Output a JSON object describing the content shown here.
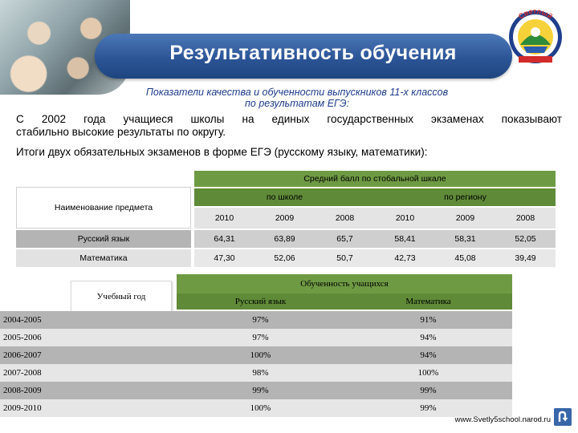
{
  "header": {
    "title": "Результативность обучения",
    "emblem_text": "Светлый"
  },
  "subtitle": {
    "line1": "Показатели качества и обученности выпускников 11-х классов",
    "line2": "по результатам ЕГЭ:"
  },
  "intro": {
    "line1": "С 2002 года учащиеся школы на единых государственных экзаменах показывают",
    "line2": "стабильно высокие результаты по округу.",
    "line3": "Итоги двух обязательных экзаменов в форме ЕГЭ (русскому языку, математики):"
  },
  "exam_table": {
    "subject_header": "Наименование предмета",
    "group_header": "Средний балл по стобальной шкале",
    "school_header": "по школе",
    "region_header": "по региону",
    "years": [
      "2010",
      "2009",
      "2008",
      "2010",
      "2009",
      "2008"
    ],
    "rows": [
      {
        "subject": "Русский язык",
        "values": [
          "64,31",
          "63,89",
          "65,7",
          "58,41",
          "58,31",
          "52,05"
        ]
      },
      {
        "subject": "Математика",
        "values": [
          "47,30",
          "52,06",
          "50,7",
          "42,73",
          "45,08",
          "39,49"
        ]
      }
    ]
  },
  "training_table": {
    "year_header": "Учебный год",
    "group_header": "Обученность учащихся",
    "col1_header": "Русский язык",
    "col2_header": "Математика",
    "rows": [
      {
        "year": "2004-2005",
        "rus": "97%",
        "math": "91%"
      },
      {
        "year": "2005-2006",
        "rus": "97%",
        "math": "94%"
      },
      {
        "year": "2006-2007",
        "rus": "100%",
        "math": "94%"
      },
      {
        "year": "2007-2008",
        "rus": "98%",
        "math": "100%"
      },
      {
        "year": "2008-2009",
        "rus": "99%",
        "math": "99%"
      },
      {
        "year": "2009-2010",
        "rus": "100%",
        "math": "99%"
      }
    ]
  },
  "footer": {
    "url": "www.Svetly5school.narod.ru"
  },
  "colors": {
    "banner": "#2c5596",
    "header_green": "#5e8a3c",
    "row_gray": "#b4b4b4"
  },
  "icons": {
    "nav": "u-turn-arrow-icon"
  }
}
